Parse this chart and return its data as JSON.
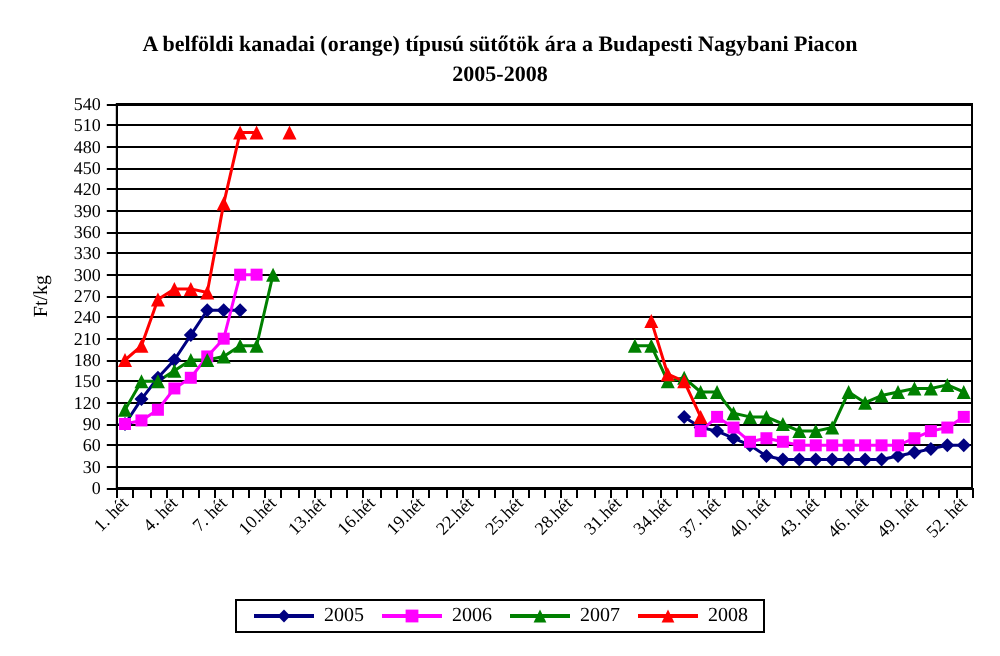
{
  "chart_data": {
    "type": "line",
    "title": "A belföldi kanadai (orange) típusú sütőtök ára a Budapesti Nagybani Piacon\n2005-2008",
    "ylabel": "Ft/kg",
    "categories": [
      "1. hét",
      null,
      null,
      "4. hét",
      null,
      null,
      "7. hét",
      null,
      null,
      "10.hét",
      null,
      null,
      "13.hét",
      null,
      null,
      "16.hét",
      null,
      null,
      "19.hét",
      null,
      null,
      "22.hét",
      null,
      null,
      "25.hét",
      null,
      null,
      "28.hét",
      null,
      null,
      "31.hét",
      null,
      null,
      "34.hét",
      null,
      null,
      "37. hét",
      null,
      null,
      "40. hét",
      null,
      null,
      "43. hét",
      null,
      null,
      "46. hét",
      null,
      null,
      "49. hét",
      null,
      null,
      "52. hét"
    ],
    "ylim": [
      0,
      540
    ],
    "yticks": [
      0,
      30,
      60,
      90,
      120,
      150,
      180,
      210,
      240,
      270,
      300,
      330,
      360,
      390,
      420,
      450,
      480,
      510,
      540
    ],
    "grid": "y",
    "legend": "bottom",
    "line_style": "solid",
    "series": [
      {
        "name": "2005",
        "color": "#000080",
        "marker": "diamond",
        "values": [
          90,
          125,
          155,
          180,
          215,
          250,
          250,
          250,
          null,
          null,
          null,
          null,
          null,
          null,
          null,
          null,
          null,
          null,
          null,
          null,
          null,
          null,
          null,
          null,
          null,
          null,
          null,
          null,
          null,
          null,
          null,
          null,
          null,
          null,
          100,
          85,
          80,
          70,
          60,
          45,
          40,
          40,
          40,
          40,
          40,
          40,
          40,
          45,
          50,
          55,
          60,
          60
        ]
      },
      {
        "name": "2006",
        "color": "#ff00ff",
        "marker": "square",
        "values": [
          90,
          95,
          110,
          140,
          155,
          185,
          210,
          300,
          300,
          null,
          null,
          null,
          null,
          null,
          null,
          null,
          null,
          null,
          null,
          null,
          null,
          null,
          null,
          null,
          null,
          null,
          null,
          null,
          null,
          null,
          null,
          null,
          null,
          null,
          null,
          80,
          100,
          85,
          65,
          70,
          65,
          60,
          60,
          60,
          60,
          60,
          60,
          60,
          70,
          80,
          85,
          100
        ]
      },
      {
        "name": "2007",
        "color": "#008000",
        "marker": "triangle",
        "values": [
          110,
          150,
          150,
          165,
          180,
          180,
          185,
          200,
          200,
          300,
          null,
          null,
          null,
          null,
          null,
          null,
          null,
          null,
          null,
          null,
          null,
          null,
          null,
          null,
          null,
          null,
          null,
          null,
          null,
          null,
          null,
          200,
          200,
          150,
          155,
          135,
          135,
          105,
          100,
          100,
          90,
          80,
          80,
          85,
          135,
          120,
          130,
          135,
          140,
          140,
          145,
          135
        ]
      },
      {
        "name": "2008",
        "color": "#ff0000",
        "marker": "triangle",
        "values": [
          180,
          200,
          265,
          280,
          280,
          275,
          400,
          500,
          500,
          null,
          500,
          null,
          null,
          null,
          null,
          null,
          null,
          null,
          null,
          null,
          null,
          null,
          null,
          null,
          null,
          null,
          null,
          null,
          null,
          null,
          null,
          null,
          235,
          160,
          150,
          100,
          null,
          null,
          null,
          null,
          null,
          null,
          null,
          null,
          null,
          null,
          null,
          null,
          null,
          null,
          null,
          null
        ]
      }
    ]
  }
}
